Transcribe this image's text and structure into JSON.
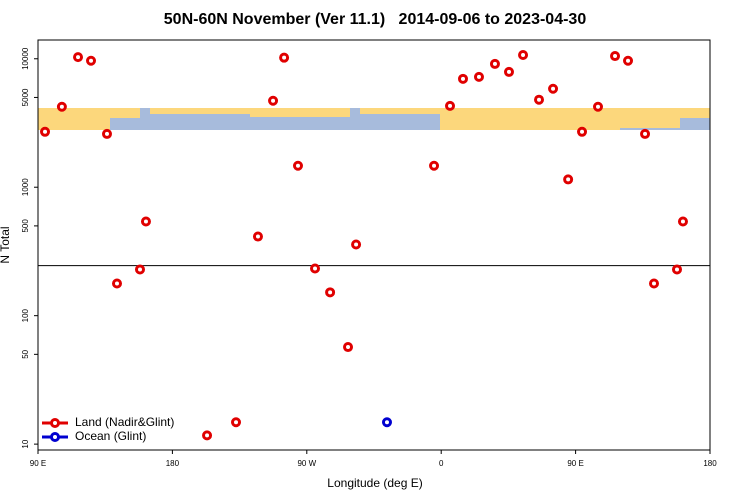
{
  "chart_data": {
    "type": "scatter",
    "title": "50N-60N November (Ver 11.1)   2014-09-06 to 2023-04-30",
    "x_label": "Longitude (deg E)",
    "y_label": "N Total",
    "xlim": [
      90,
      540
    ],
    "xticks": [
      {
        "value": 90,
        "label": "90 E"
      },
      {
        "value": 180,
        "label": "180"
      },
      {
        "value": 270,
        "label": "90 W"
      },
      {
        "value": 360,
        "label": "0"
      },
      {
        "value": 450,
        "label": "90 E"
      },
      {
        "value": 540,
        "label": "180"
      }
    ],
    "ylim": [
      9,
      14000
    ],
    "yticks": [
      10,
      50,
      100,
      500,
      1000,
      5000,
      10000
    ],
    "log_y": true,
    "hline": 245,
    "legend": "lower left",
    "series": [
      {
        "name": "Land (Nadir&Glint)",
        "color": "#e00000",
        "x": [
          94.7,
          106,
          116.8,
          125.5,
          136.2,
          142.9,
          158.3,
          162.3,
          203.2,
          222.6,
          237.3,
          247.4,
          254.8,
          264.1,
          275.5,
          285.6,
          297.6,
          303,
          355.2,
          365.9,
          374.6,
          385.3,
          396,
          405.4,
          414.8,
          425.5,
          434.9,
          445,
          454.3,
          465,
          476.4,
          485.1,
          496.5,
          502.5,
          517.9,
          521.9
        ],
        "values": [
          2700,
          4230,
          10300,
          9650,
          2600,
          178,
          229,
          541,
          11.7,
          14.8,
          413,
          4710,
          10200,
          1470,
          233,
          152,
          57,
          358,
          1470,
          4300,
          6980,
          7230,
          9120,
          7900,
          10700,
          4800,
          5840,
          1150,
          2700,
          4230,
          10500,
          9650,
          2600,
          178,
          229,
          541
        ]
      },
      {
        "name": "Ocean (Glint)",
        "color": "#0000d0",
        "x": [
          323.7
        ],
        "values": [
          14.8
        ]
      }
    ]
  }
}
